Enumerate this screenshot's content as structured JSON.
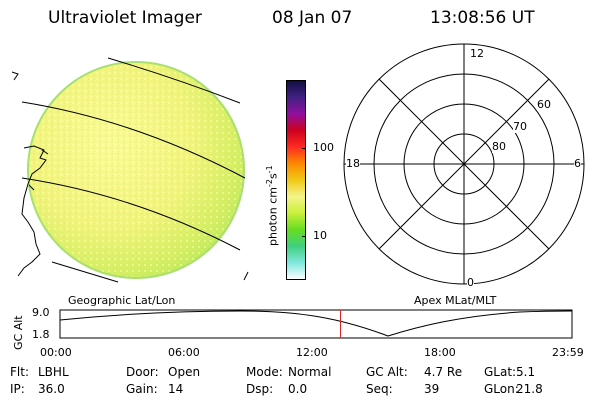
{
  "header": {
    "title": "Ultraviolet Imager",
    "date": "08 Jan 07",
    "time": "13:08:56 UT"
  },
  "left_panel": {
    "caption": "Geographic Lat/Lon"
  },
  "colorbar": {
    "axis_label_main": "photon cm",
    "axis_label_sup1": "-2",
    "axis_label_mid": "s",
    "axis_label_sup2": "-1",
    "ticks": [
      {
        "label": "100",
        "value": 100
      },
      {
        "label": "10",
        "value": 10
      }
    ],
    "scale": "log",
    "colors": [
      "#ffffff",
      "#80e8e0",
      "#40d080",
      "#66dd22",
      "#c8f03a",
      "#f5f58a",
      "#f0c818",
      "#ff8800",
      "#ff2a20",
      "#cc0020",
      "#9010a0",
      "#402080",
      "#101040"
    ]
  },
  "polar_plot": {
    "caption": "Apex MLat/MLT",
    "mlt_labels": {
      "top": "12",
      "left": "18",
      "right": "6",
      "bottom": "0"
    },
    "lat_labels": [
      "60",
      "70",
      "80"
    ]
  },
  "timeline": {
    "y_label": "GC Alt",
    "y_ticks": [
      "9.0",
      "1.8"
    ],
    "x_ticks": [
      "00:00",
      "06:00",
      "12:00",
      "18:00",
      "23:59"
    ],
    "current_time_marker": "13:08:56",
    "marker_color": "#dd2222"
  },
  "footer": {
    "rows": [
      [
        {
          "key": "Flt:",
          "value": "LBHL"
        },
        {
          "key": "Door:",
          "value": "Open"
        },
        {
          "key": "Mode:",
          "value": "Normal"
        },
        {
          "key": "GC Alt:",
          "value": "4.7 Re"
        },
        {
          "key": "GLat:",
          "value": "5.1"
        }
      ],
      [
        {
          "key": "IP:",
          "value": "36.0"
        },
        {
          "key": "Gain:",
          "value": "14"
        },
        {
          "key": "Dsp:",
          "value": "0.0"
        },
        {
          "key": "Seq:",
          "value": "39"
        },
        {
          "key": "GLon:",
          "value": "21.8"
        }
      ]
    ]
  }
}
